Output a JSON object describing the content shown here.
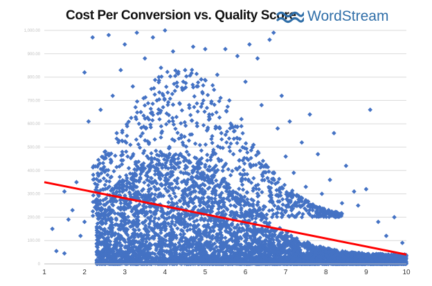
{
  "header": {
    "title": "Cost Per Conversion vs. Quality Score",
    "brand": "WordStream",
    "brand_color": "#2f6ea8",
    "brand_icon": "wave-icon"
  },
  "chart_data": {
    "type": "scatter",
    "title": "Cost Per Conversion vs. Quality Score",
    "xlabel": "",
    "ylabel": "",
    "xlim": [
      1,
      10
    ],
    "ylim": [
      0,
      1000
    ],
    "x_ticks": [
      "1",
      "2",
      "3",
      "4",
      "5",
      "6",
      "7",
      "8",
      "9",
      "10"
    ],
    "y_ticks": [
      "0",
      "100.00",
      "200.00",
      "300.00",
      "400.00",
      "500.00",
      "600.00",
      "700.00",
      "800.00",
      "900.00",
      "1,000.00"
    ],
    "grid": "horizontal",
    "legend": "none",
    "marker": "diamond",
    "point_color": "#4472c4",
    "trendline": {
      "type": "linear",
      "color": "#ff0000",
      "points": [
        [
          1,
          350
        ],
        [
          10,
          40
        ]
      ]
    },
    "series": [
      {
        "name": "",
        "points": [
          [
            1.2,
            150
          ],
          [
            1.3,
            55
          ],
          [
            1.5,
            45
          ],
          [
            1.5,
            310
          ],
          [
            1.6,
            190
          ],
          [
            1.7,
            230
          ],
          [
            1.8,
            350
          ],
          [
            1.9,
            120
          ],
          [
            2.0,
            820
          ],
          [
            2.0,
            180
          ],
          [
            2.1,
            610
          ],
          [
            2.2,
            970
          ],
          [
            2.3,
            250
          ],
          [
            2.4,
            660
          ],
          [
            2.5,
            480
          ],
          [
            2.6,
            980
          ],
          [
            2.7,
            720
          ],
          [
            2.8,
            560
          ],
          [
            2.9,
            830
          ],
          [
            3.0,
            940
          ],
          [
            3.1,
            410
          ],
          [
            3.2,
            760
          ],
          [
            3.3,
            990
          ],
          [
            3.4,
            650
          ],
          [
            3.5,
            880
          ],
          [
            3.6,
            520
          ],
          [
            3.7,
            970
          ],
          [
            3.8,
            700
          ],
          [
            3.9,
            840
          ],
          [
            4.0,
            1000
          ],
          [
            4.1,
            610
          ],
          [
            4.2,
            910
          ],
          [
            4.3,
            760
          ],
          [
            4.4,
            540
          ],
          [
            4.5,
            830
          ],
          [
            4.6,
            680
          ],
          [
            4.7,
            930
          ],
          [
            4.8,
            590
          ],
          [
            4.9,
            790
          ],
          [
            5.0,
            920
          ],
          [
            5.1,
            640
          ],
          [
            5.2,
            480
          ],
          [
            5.3,
            810
          ],
          [
            5.4,
            560
          ],
          [
            5.5,
            920
          ],
          [
            5.6,
            700
          ],
          [
            5.7,
            470
          ],
          [
            5.8,
            890
          ],
          [
            5.9,
            620
          ],
          [
            6.0,
            780
          ],
          [
            6.1,
            940
          ],
          [
            6.2,
            510
          ],
          [
            6.3,
            880
          ],
          [
            6.4,
            680
          ],
          [
            6.5,
            420
          ],
          [
            6.6,
            960
          ],
          [
            6.7,
            990
          ],
          [
            6.8,
            580
          ],
          [
            6.9,
            720
          ],
          [
            7.0,
            460
          ],
          [
            7.1,
            610
          ],
          [
            7.2,
            390
          ],
          [
            7.4,
            520
          ],
          [
            7.5,
            330
          ],
          [
            7.6,
            640
          ],
          [
            7.8,
            470
          ],
          [
            7.9,
            300
          ],
          [
            8.1,
            360
          ],
          [
            8.2,
            560
          ],
          [
            8.4,
            260
          ],
          [
            8.5,
            420
          ],
          [
            8.7,
            310
          ],
          [
            8.8,
            250
          ],
          [
            9.0,
            320
          ],
          [
            9.1,
            660
          ],
          [
            9.3,
            180
          ],
          [
            9.5,
            120
          ],
          [
            9.7,
            200
          ],
          [
            9.9,
            90
          ]
        ]
      }
    ]
  }
}
